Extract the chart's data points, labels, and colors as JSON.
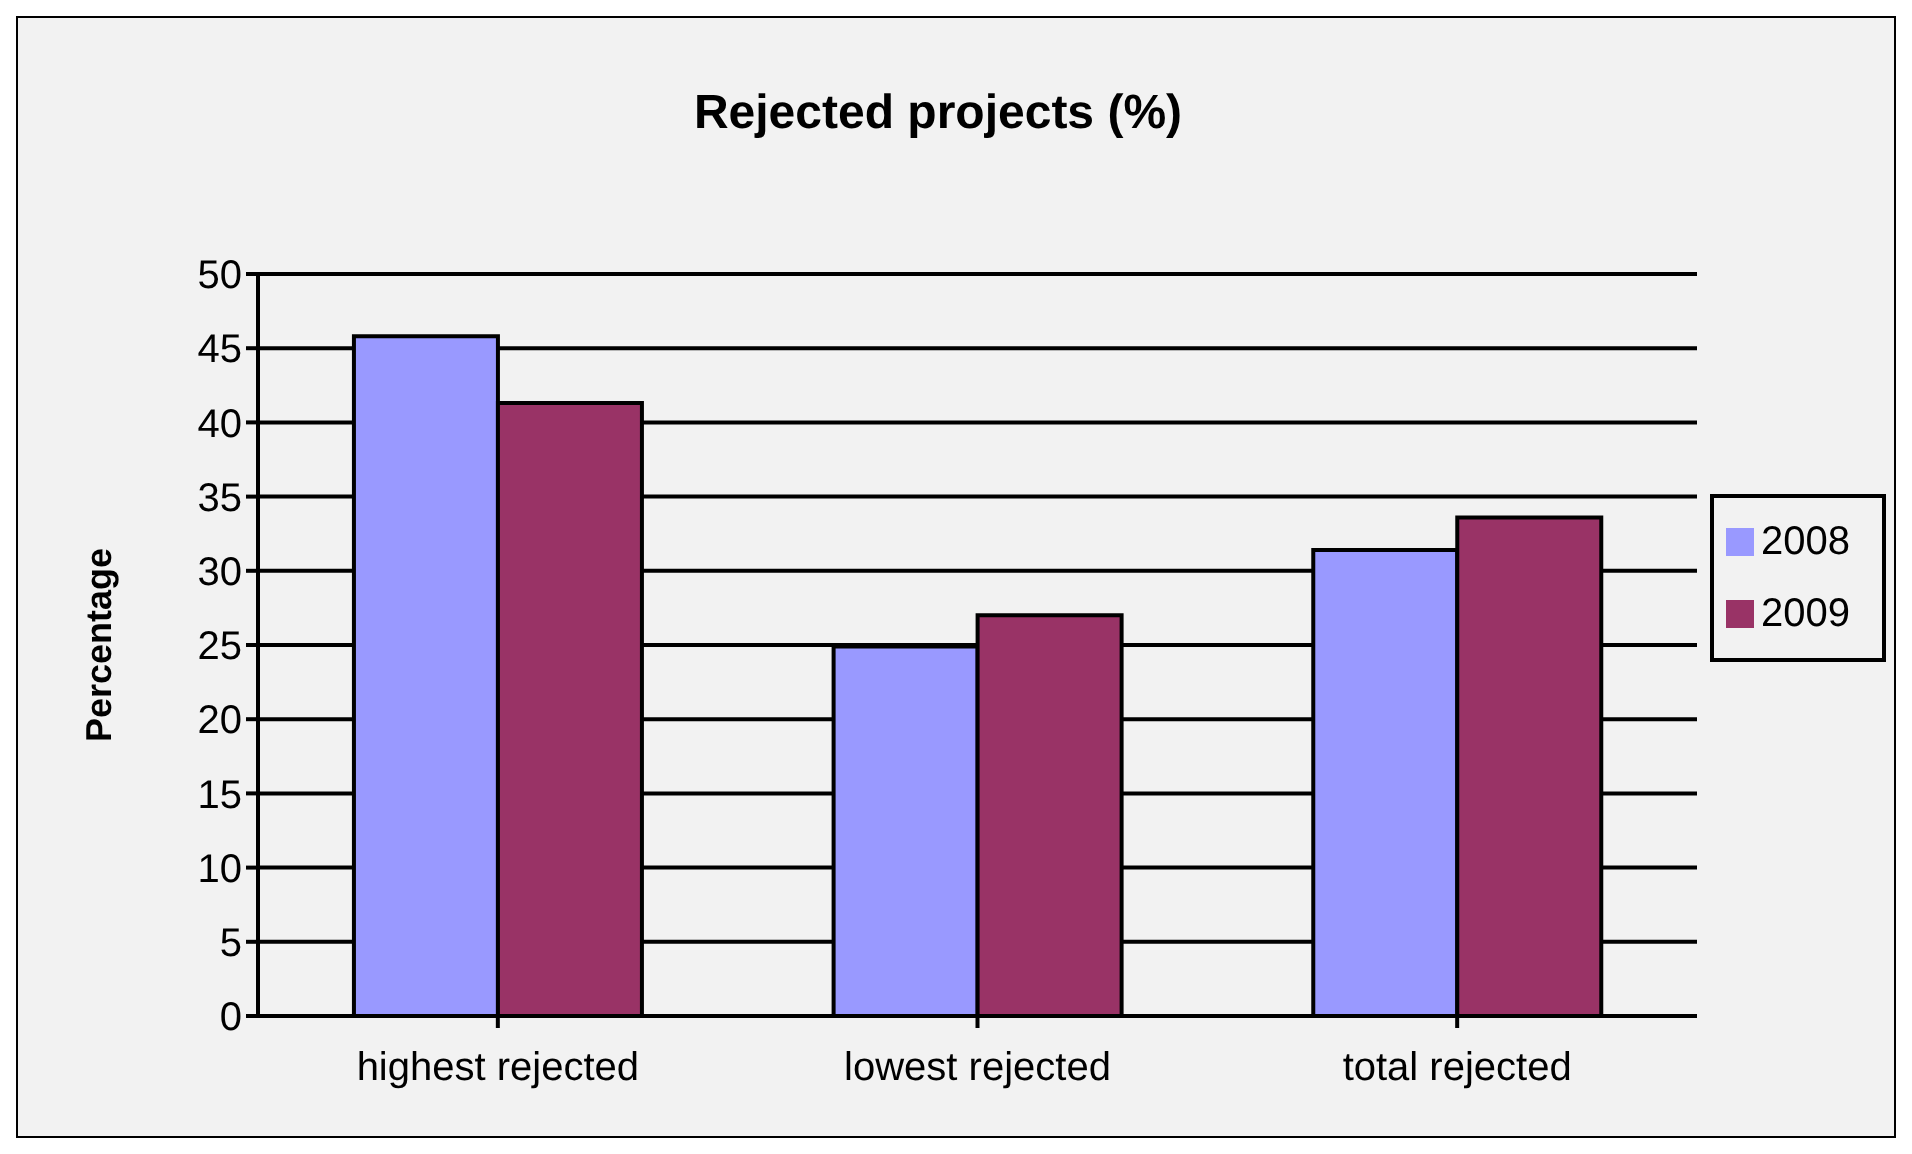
{
  "chart_data": {
    "type": "bar",
    "title": "Rejected projects (%)",
    "ylabel": "Percentage",
    "categories": [
      "highest rejected",
      "lowest rejected",
      "total rejected"
    ],
    "series": [
      {
        "name": "2008",
        "color": "#9999ff",
        "values": [
          45.8,
          24.9,
          31.4
        ]
      },
      {
        "name": "2009",
        "color": "#993366",
        "values": [
          41.3,
          27.0,
          33.6
        ]
      }
    ],
    "ylim": [
      0,
      50
    ],
    "yticks": [
      0,
      5,
      10,
      15,
      20,
      25,
      30,
      35,
      40,
      45,
      50
    ],
    "grid": "y",
    "legend": "right"
  }
}
